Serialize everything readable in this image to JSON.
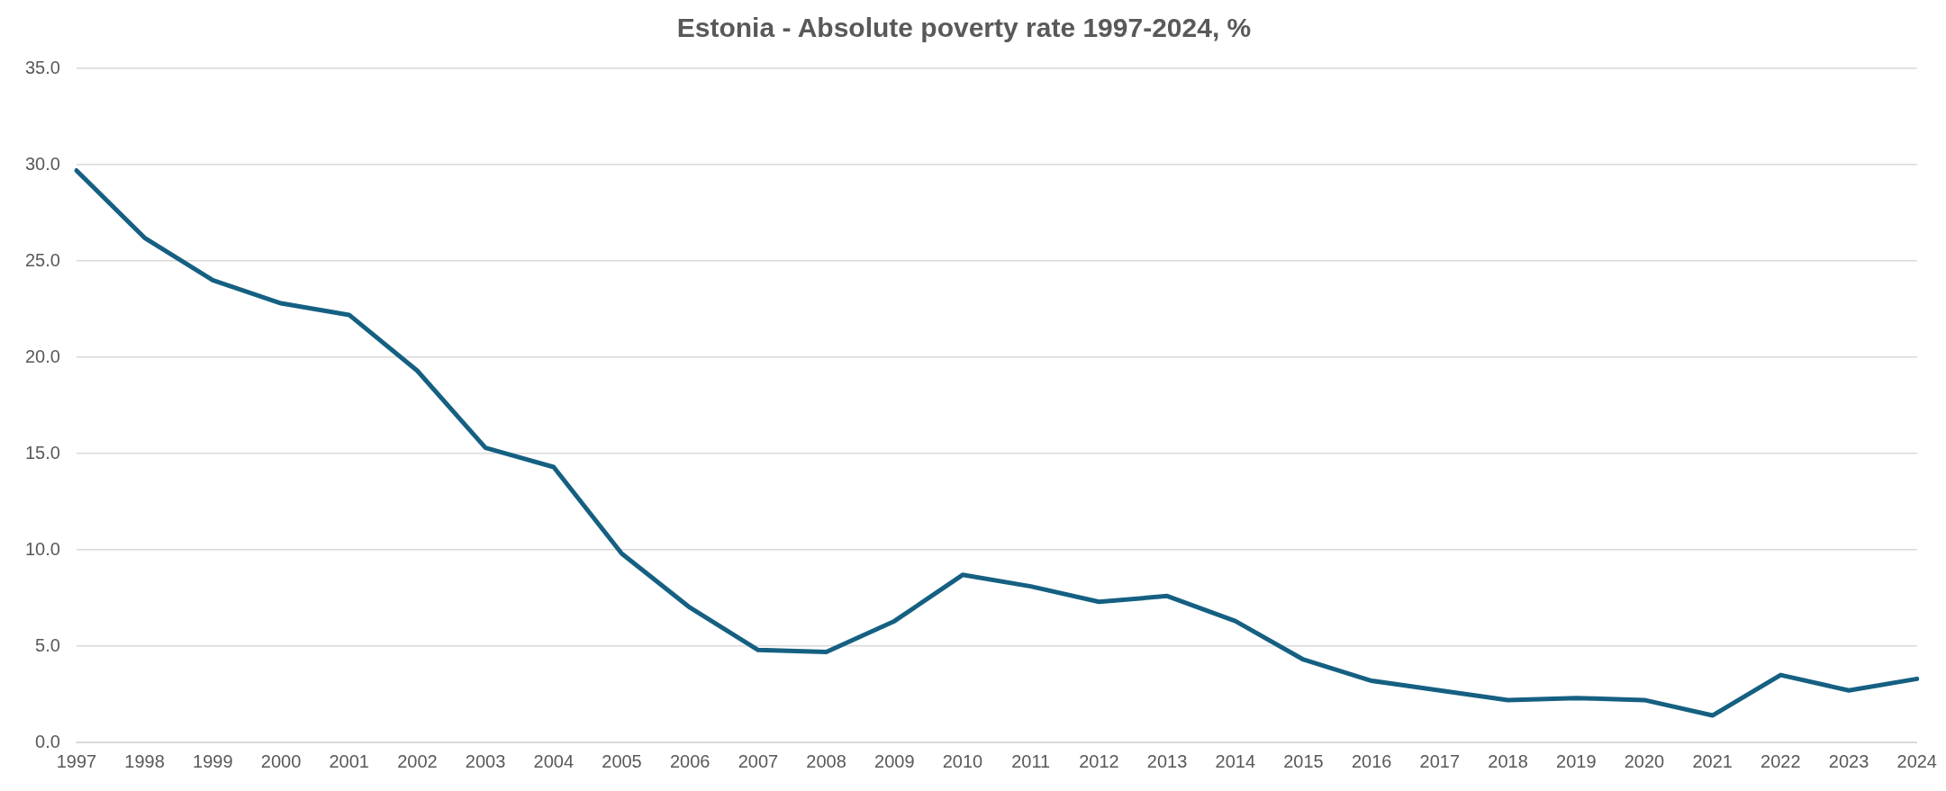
{
  "chart_data": {
    "type": "line",
    "title": "Estonia - Absolute poverty rate 1997-2024, %",
    "categories": [
      "1997",
      "1998",
      "1999",
      "2000",
      "2001",
      "2002",
      "2003",
      "2004",
      "2005",
      "2006",
      "2007",
      "2008",
      "2009",
      "2010",
      "2011",
      "2012",
      "2013",
      "2014",
      "2015",
      "2016",
      "2017",
      "2018",
      "2019",
      "2020",
      "2021",
      "2022",
      "2023",
      "2024"
    ],
    "series": [
      {
        "color": "#156082",
        "values": [
          29.7,
          26.2,
          24.0,
          22.8,
          22.2,
          19.3,
          15.3,
          14.3,
          9.8,
          7.0,
          4.8,
          4.7,
          6.3,
          8.7,
          8.1,
          7.3,
          7.6,
          6.3,
          4.3,
          3.2,
          2.7,
          2.2,
          2.3,
          2.2,
          1.4,
          3.5,
          2.7,
          3.3
        ]
      }
    ],
    "ylim": [
      0,
      35
    ],
    "yticks": [
      {
        "value": 0,
        "label": "0.0"
      },
      {
        "value": 5,
        "label": "5.0"
      },
      {
        "value": 10,
        "label": "10.0"
      },
      {
        "value": 15,
        "label": "15.0"
      },
      {
        "value": 20,
        "label": "20.0"
      },
      {
        "value": 25,
        "label": "25.0"
      },
      {
        "value": 30,
        "label": "30.0"
      },
      {
        "value": 35,
        "label": "35.0"
      }
    ],
    "grid": "y",
    "legend": false,
    "marker": "none",
    "line_style": "solid"
  }
}
